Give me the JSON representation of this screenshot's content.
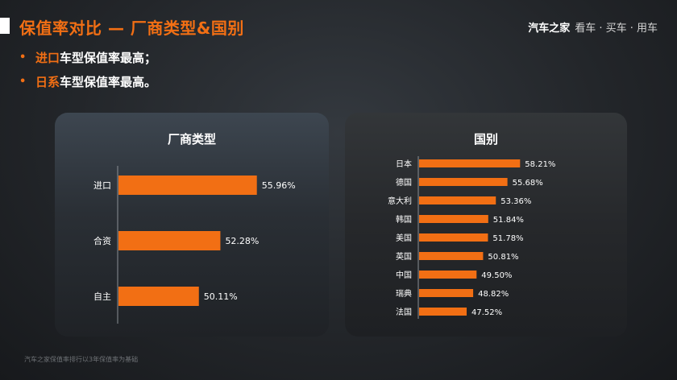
{
  "header": {
    "title": "保值率对比 — 厂商类型&国别",
    "brand_main": "汽车之家",
    "brand_sub": "看车 · 买车 · 用车"
  },
  "bullets": [
    {
      "highlight": "进口",
      "text": "车型保值率最高；"
    },
    {
      "highlight": "日系",
      "text": "车型保值率最高。"
    }
  ],
  "footnote": "汽车之家保值率排行以3年保值率为基础",
  "colors": {
    "accent": "#f26f14",
    "bar": "#f26f14"
  },
  "chart_data": [
    {
      "type": "bar",
      "orientation": "horizontal",
      "title": "厂商类型",
      "categories": [
        "进口",
        "合资",
        "自主"
      ],
      "values": [
        55.96,
        52.28,
        50.11
      ],
      "labels": [
        "55.96%",
        "52.28%",
        "50.11%"
      ],
      "xlabel": "",
      "ylabel": ""
    },
    {
      "type": "bar",
      "orientation": "horizontal",
      "title": "国别",
      "categories": [
        "日本",
        "德国",
        "意大利",
        "韩国",
        "美国",
        "英国",
        "中国",
        "瑞典",
        "法国"
      ],
      "values": [
        58.21,
        55.68,
        53.36,
        51.84,
        51.78,
        50.81,
        49.5,
        48.82,
        47.52
      ],
      "labels": [
        "58.21%",
        "55.68%",
        "53.36%",
        "51.84%",
        "51.78%",
        "50.81%",
        "49.50%",
        "48.82%",
        "47.52%"
      ],
      "xlabel": "",
      "ylabel": ""
    }
  ]
}
